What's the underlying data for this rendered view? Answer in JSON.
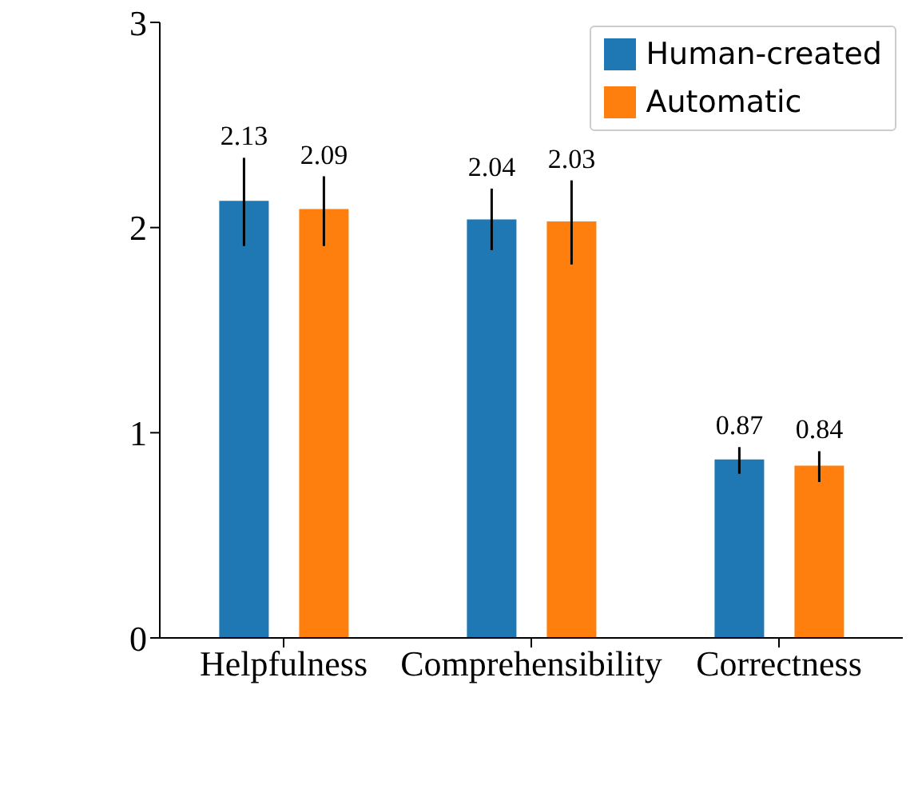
{
  "chart_data": {
    "type": "bar",
    "categories": [
      "Helpfulness",
      "Comprehensibility",
      "Correctness"
    ],
    "series": [
      {
        "name": "Human-created",
        "color": "#1f77b4",
        "values": [
          2.13,
          2.04,
          0.87
        ],
        "errors": [
          [
            1.91,
            2.34
          ],
          [
            1.89,
            2.19
          ],
          [
            0.8,
            0.93
          ]
        ]
      },
      {
        "name": "Automatic",
        "color": "#ff7f0e",
        "values": [
          2.09,
          2.03,
          0.84
        ],
        "errors": [
          [
            1.91,
            2.25
          ],
          [
            1.82,
            2.23
          ],
          [
            0.76,
            0.91
          ]
        ]
      }
    ],
    "ylim": [
      0,
      3
    ],
    "yticks": [
      0,
      1,
      2,
      3
    ],
    "data_labels": true,
    "legend": "top right",
    "grid": false
  }
}
